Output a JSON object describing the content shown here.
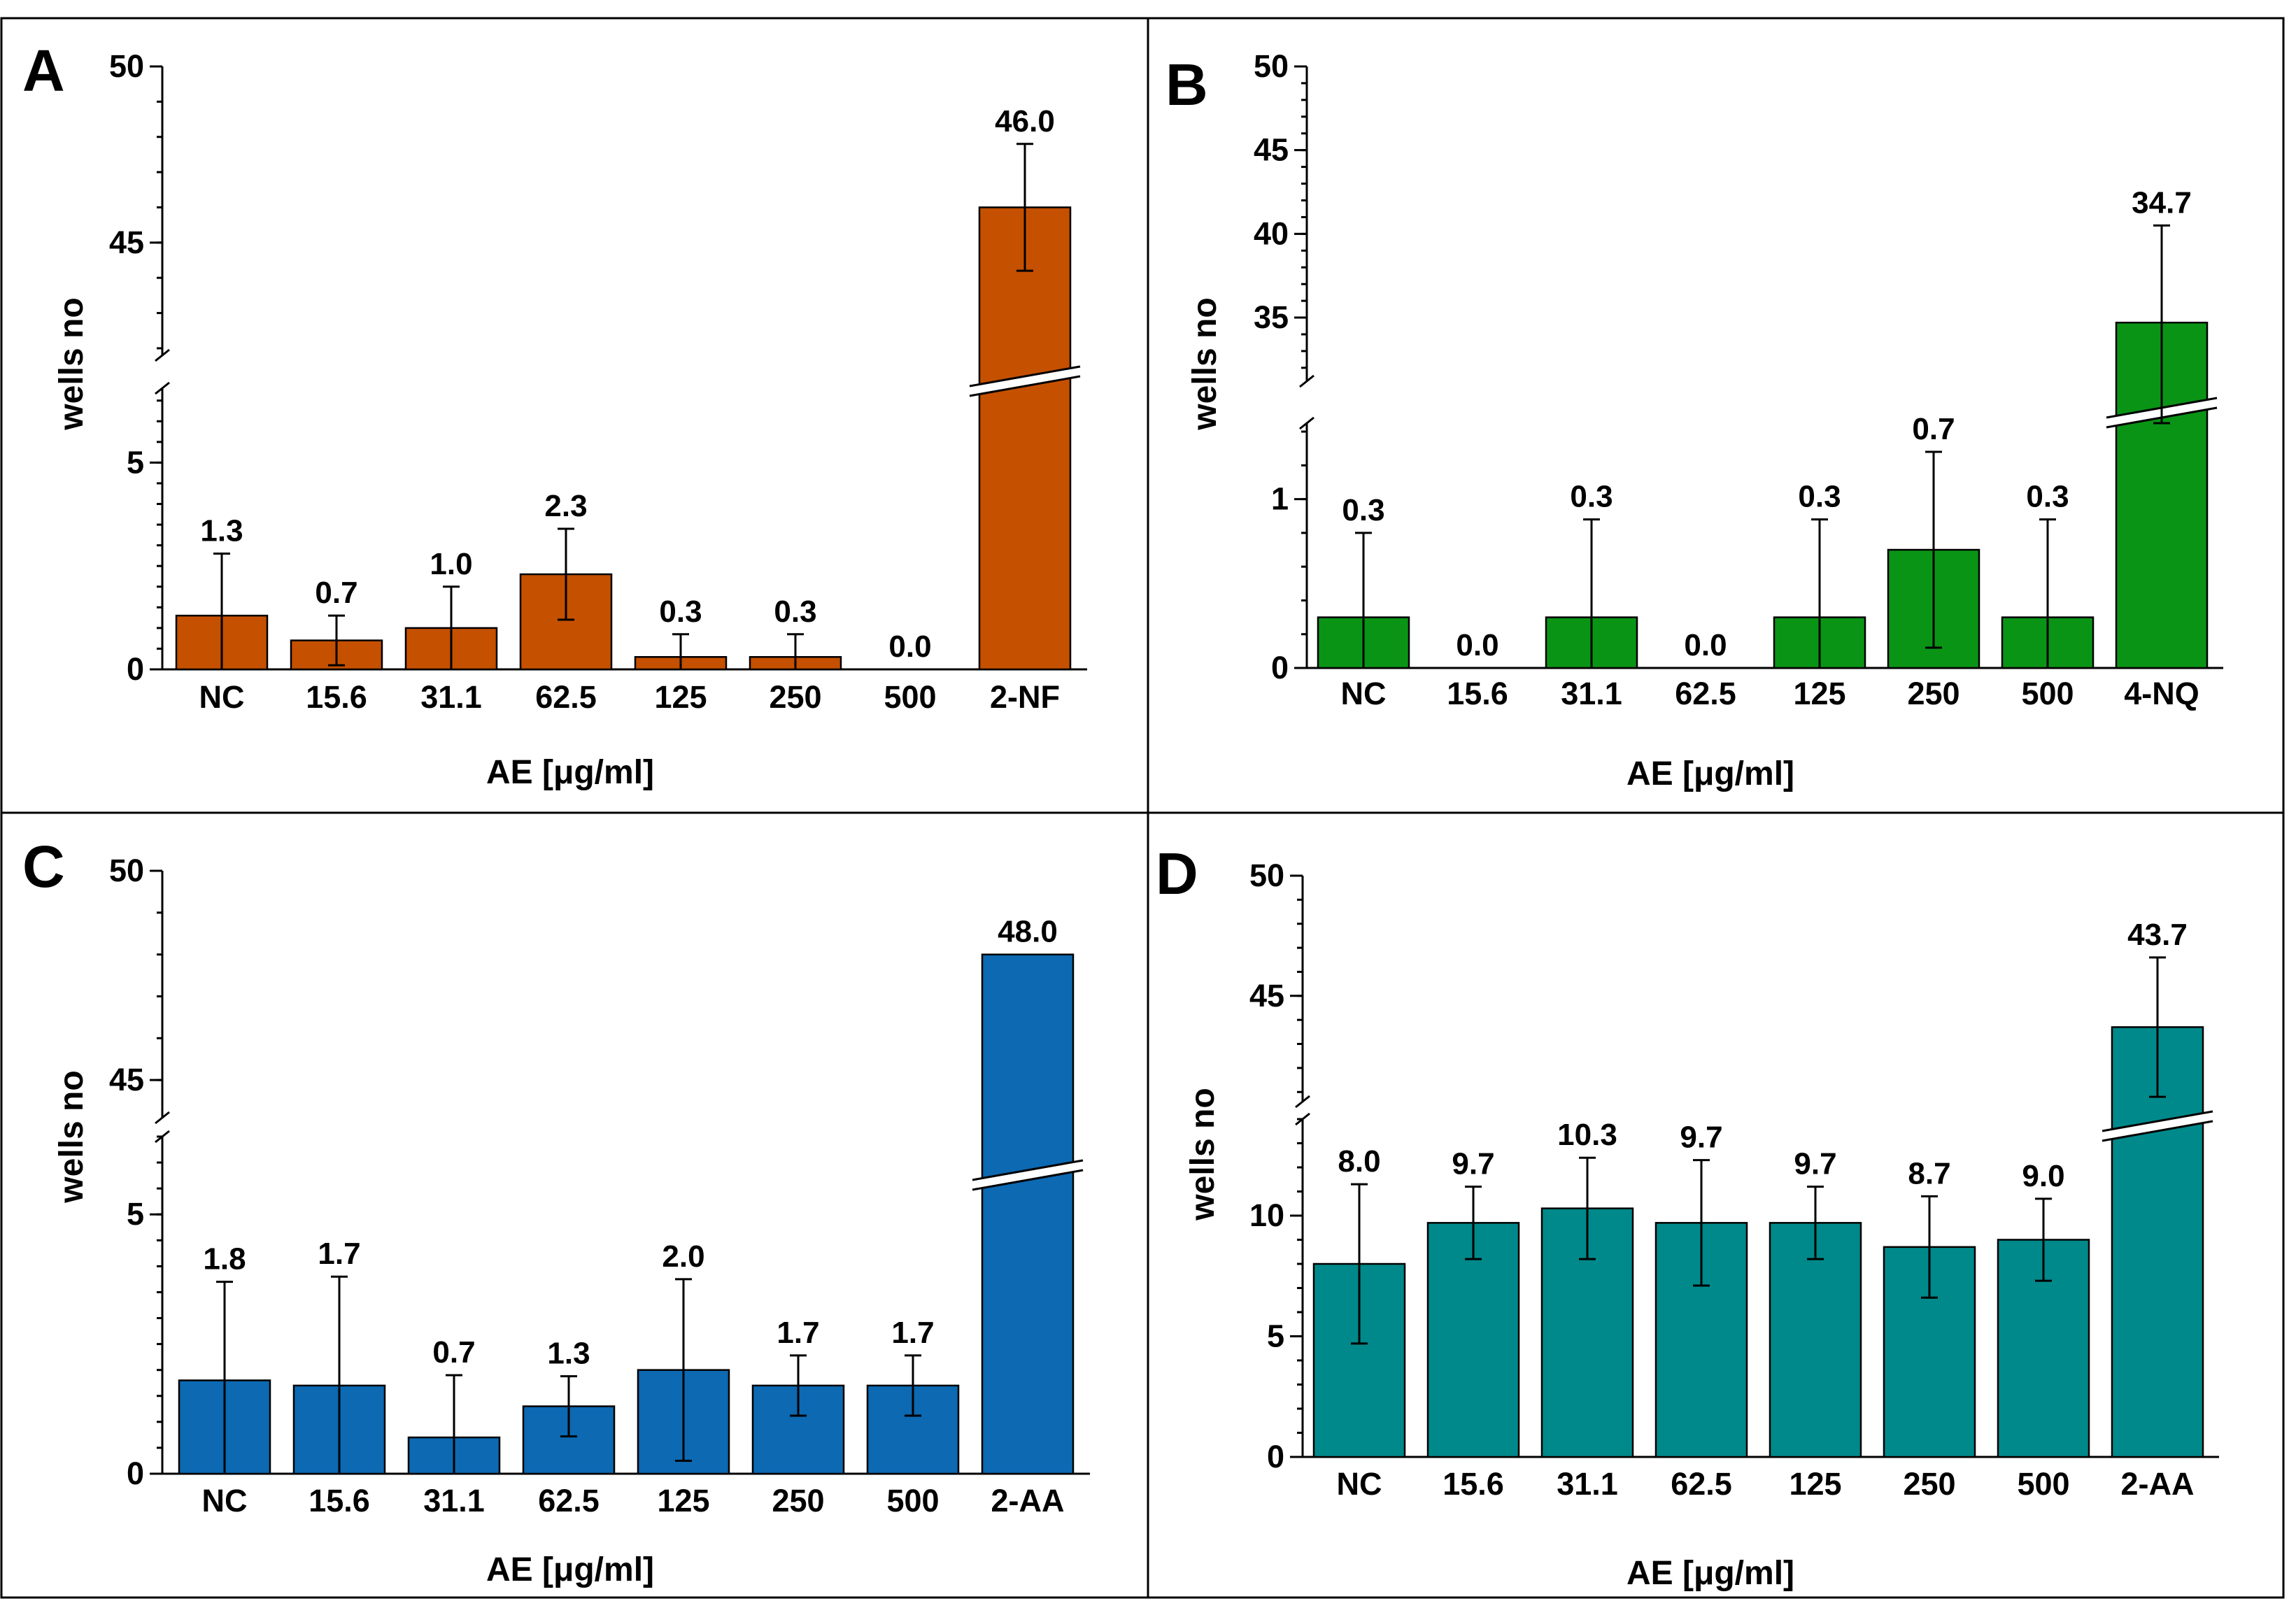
{
  "colors": {
    "A": "#c55000",
    "B": "#0a9416",
    "C": "#0c69b2",
    "D": "#00898a"
  },
  "chart_data": [
    {
      "panel": "A",
      "type": "bar",
      "categories": [
        "NC",
        "15.6",
        "31.1",
        "62.5",
        "125",
        "250",
        "500",
        "2-NF"
      ],
      "values": [
        1.3,
        0.7,
        1.0,
        2.3,
        0.3,
        0.3,
        0.0,
        46.0
      ],
      "value_labels": [
        "1.3",
        "0.7",
        "1.0",
        "2.3",
        "0.3",
        "0.3",
        "0.0",
        "46.0"
      ],
      "errors": [
        1.5,
        0.6,
        1.0,
        1.1,
        0.55,
        0.55,
        0.0,
        1.8
      ],
      "xlabel": "AE [μg/ml]",
      "ylabel": "wells no",
      "lower_range": [
        0,
        6.8
      ],
      "upper_range": [
        41.8,
        50
      ],
      "lower_ticks": [
        "0",
        "5"
      ],
      "upper_ticks": [
        "45",
        "50"
      ]
    },
    {
      "panel": "B",
      "type": "bar",
      "categories": [
        "NC",
        "15.6",
        "31.1",
        "62.5",
        "125",
        "250",
        "500",
        "4-NQ"
      ],
      "values": [
        0.3,
        0.0,
        0.3,
        0.0,
        0.3,
        0.7,
        0.3,
        34.7
      ],
      "value_labels": [
        "0.3",
        "0.0",
        "0.3",
        "0.0",
        "0.3",
        "0.7",
        "0.3",
        "34.7"
      ],
      "errors": [
        0.5,
        0.0,
        0.58,
        0.0,
        0.58,
        0.58,
        0.58,
        5.8
      ],
      "xlabel": "AE [μg/ml]",
      "ylabel": "wells no",
      "lower_range": [
        0,
        1.45
      ],
      "upper_range": [
        31.2,
        50
      ],
      "lower_ticks": [
        "0",
        "1"
      ],
      "upper_ticks": [
        "35",
        "40",
        "45",
        "50"
      ]
    },
    {
      "panel": "C",
      "type": "bar",
      "categories": [
        "NC",
        "15.6",
        "31.1",
        "62.5",
        "125",
        "250",
        "500",
        "2-AA"
      ],
      "values": [
        1.8,
        1.7,
        0.7,
        1.3,
        2.0,
        1.7,
        1.7,
        48.0
      ],
      "value_labels": [
        "1.8",
        "1.7",
        "0.7",
        "1.3",
        "2.0",
        "1.7",
        "1.7",
        "48.0"
      ],
      "errors": [
        1.9,
        2.1,
        1.2,
        0.58,
        1.75,
        0.58,
        0.58,
        0.0
      ],
      "xlabel": "AE [μg/ml]",
      "ylabel": "wells no",
      "lower_range": [
        0,
        6.5
      ],
      "upper_range": [
        44.1,
        50
      ],
      "lower_ticks": [
        "0",
        "5"
      ],
      "upper_ticks": [
        "45",
        "50"
      ]
    },
    {
      "panel": "D",
      "type": "bar",
      "categories": [
        "NC",
        "15.6",
        "31.1",
        "62.5",
        "125",
        "250",
        "500",
        "2-AA"
      ],
      "values": [
        8.0,
        9.7,
        10.3,
        9.7,
        9.7,
        8.7,
        9.0,
        43.7
      ],
      "value_labels": [
        "8.0",
        "9.7",
        "10.3",
        "9.7",
        "9.7",
        "8.7",
        "9.0",
        "43.7"
      ],
      "errors": [
        3.3,
        1.5,
        2.1,
        2.6,
        1.5,
        2.1,
        1.7,
        2.9
      ],
      "xlabel": "AE [μg/ml]",
      "ylabel": "wells no",
      "lower_range": [
        0,
        14
      ],
      "upper_range": [
        40.6,
        50
      ],
      "lower_ticks": [
        "0",
        "5",
        "10"
      ],
      "upper_ticks": [
        "45",
        "50"
      ]
    }
  ]
}
